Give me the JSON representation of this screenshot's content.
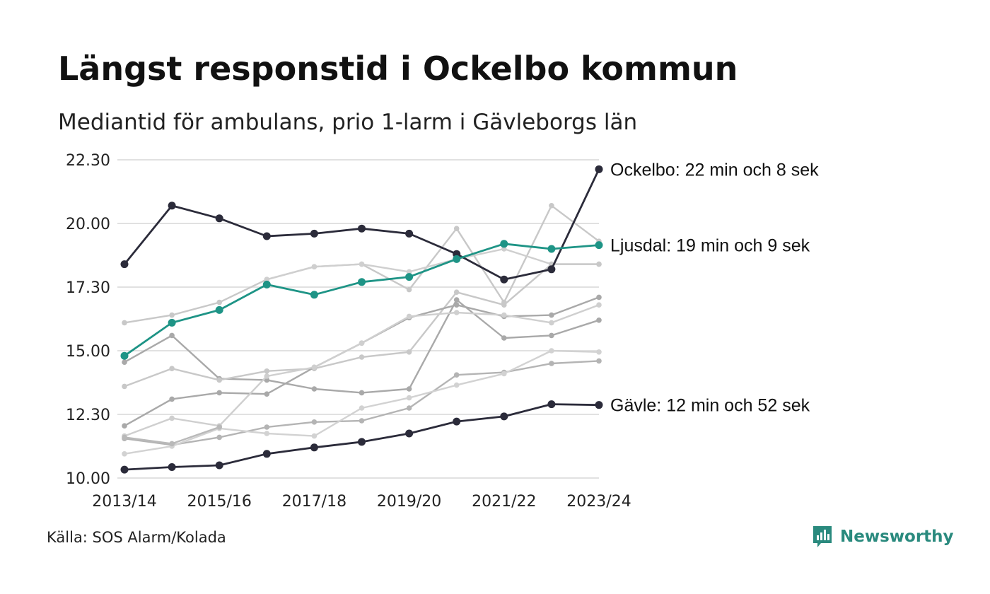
{
  "title": "Längst responstid i Ockelbo kommun",
  "subtitle": "Mediantid för ambulans, prio 1-larm i Gävleborgs län",
  "source": "Källa: SOS Alarm/Kolada",
  "brand": {
    "name": "Newsworthy",
    "color": "#2a8a7e",
    "icon": "newsworthy-logo-icon"
  },
  "chart_data": {
    "type": "line",
    "x": [
      "2013/14",
      "2014/15",
      "2015/16",
      "2016/17",
      "2017/18",
      "2018/19",
      "2019/20",
      "2020/21",
      "2021/22",
      "2022/23",
      "2023/24"
    ],
    "xticks": [
      "2013/14",
      "2015/16",
      "2017/18",
      "2019/20",
      "2021/22",
      "2023/24"
    ],
    "yticks": [
      "10.00",
      "12.30",
      "15.00",
      "17.30",
      "20.00",
      "22.30"
    ],
    "ylim": [
      10,
      22.5
    ],
    "y_unit": "minutes",
    "grid": true,
    "series": [
      {
        "name": "Ockelbo",
        "label": "Ockelbo: 22 min och 8 sek",
        "color": "#2b2b3a",
        "highlight": true,
        "values": [
          18.4,
          20.7,
          20.2,
          19.5,
          19.6,
          19.8,
          19.6,
          18.8,
          17.8,
          18.2,
          22.13
        ]
      },
      {
        "name": "Ljusdal",
        "label": "Ljusdal: 19 min och 9 sek",
        "color": "#1e9486",
        "highlight": true,
        "values": [
          14.8,
          16.1,
          16.6,
          17.6,
          17.2,
          17.7,
          17.9,
          18.6,
          19.2,
          19.0,
          19.15
        ]
      },
      {
        "name": "Gävle",
        "label": "Gävle: 12 min och 52 sek",
        "color": "#2b2b3a",
        "highlight": true,
        "values": [
          10.33,
          10.43,
          10.5,
          10.95,
          11.2,
          11.42,
          11.75,
          12.22,
          12.42,
          12.9,
          12.87
        ]
      },
      {
        "name": "",
        "color": "#c8c8c8",
        "values": [
          16.1,
          16.4,
          16.9,
          17.8,
          18.3,
          18.4,
          17.4,
          19.8,
          16.9,
          20.7,
          19.3
        ]
      },
      {
        "name": "",
        "color": "#cfcfcf",
        "values": [
          null,
          null,
          null,
          17.8,
          18.3,
          18.4,
          18.1,
          18.6,
          19.0,
          18.4,
          18.4
        ]
      },
      {
        "name": "",
        "color": "#a9a9a9",
        "values": [
          14.55,
          15.6,
          13.9,
          13.85,
          13.5,
          13.35,
          13.5,
          17.0,
          15.5,
          15.6,
          16.2
        ]
      },
      {
        "name": "",
        "color": "#c8c8c8",
        "values": [
          13.6,
          14.3,
          13.85,
          14.2,
          14.3,
          14.75,
          14.95,
          17.3,
          16.8,
          18.4,
          18.4
        ]
      },
      {
        "name": "",
        "color": "#a9a9a9",
        "values": [
          12.05,
          13.1,
          13.35,
          13.3,
          14.35,
          15.3,
          16.3,
          16.8,
          16.35,
          16.4,
          17.1
        ]
      },
      {
        "name": "",
        "color": "#cfcfcf",
        "values": [
          11.65,
          12.35,
          12.05,
          14.0,
          14.35,
          15.3,
          16.35,
          16.5,
          16.4,
          16.1,
          16.8
        ]
      },
      {
        "name": "",
        "color": "#b4b4b4",
        "values": [
          11.55,
          11.3,
          11.6,
          12.0,
          12.2,
          12.25,
          12.75,
          14.05,
          14.15,
          14.5,
          14.6
        ]
      },
      {
        "name": "",
        "color": "#d2d2d2",
        "values": [
          10.95,
          11.25,
          11.95,
          11.75,
          11.65,
          12.75,
          13.15,
          13.65,
          14.1,
          15.0,
          14.95
        ]
      },
      {
        "name": "",
        "color": "#b9b9b9",
        "values": [
          11.6,
          11.35,
          12.0,
          null,
          null,
          null,
          null,
          null,
          null,
          null,
          null
        ]
      }
    ]
  }
}
